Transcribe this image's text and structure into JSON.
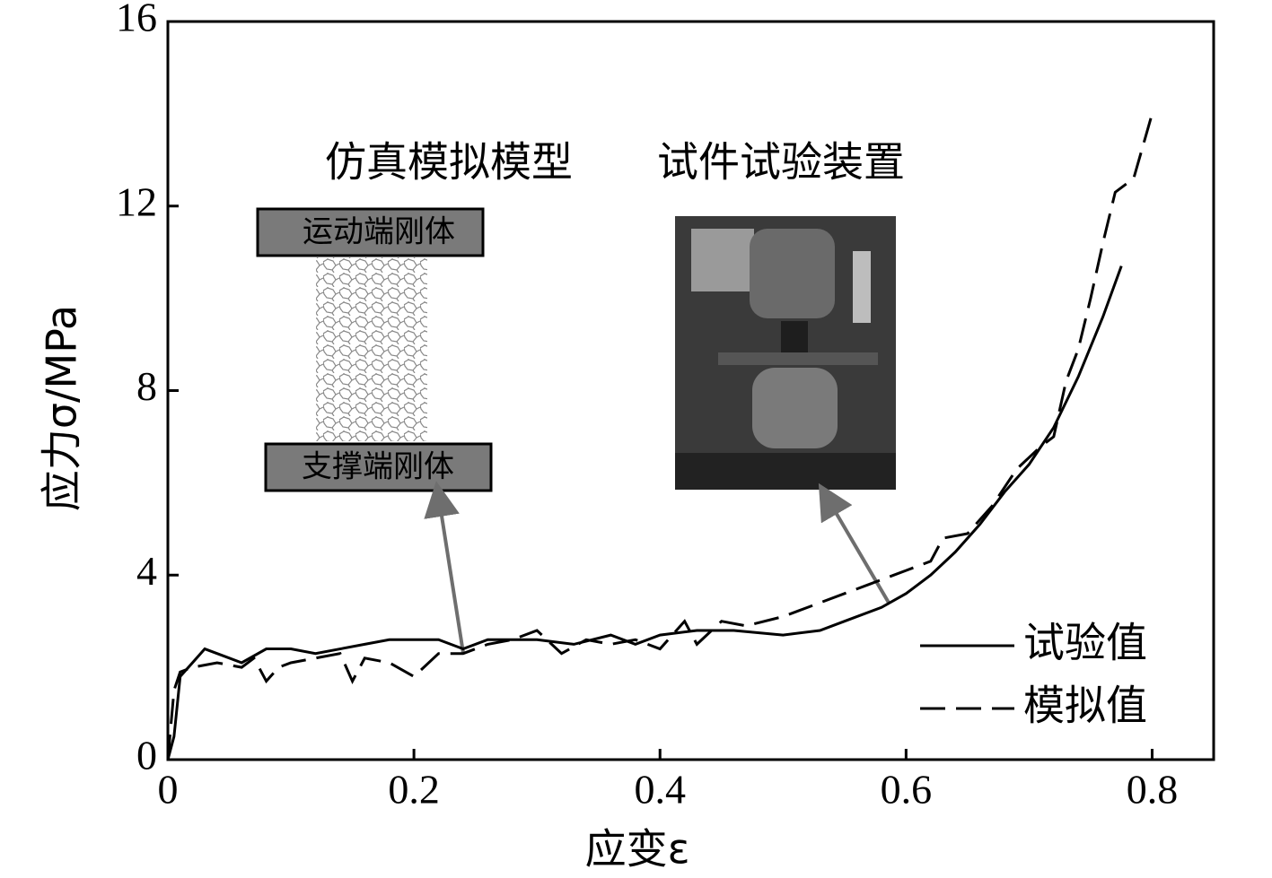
{
  "chart_data": {
    "type": "line",
    "xlabel": "应变ε",
    "ylabel": "应力σ/MPa",
    "annotations": [
      "仿真模拟模型",
      "试件试验装置",
      "运动端刚体",
      "支撑端刚体"
    ],
    "xlim": [
      0,
      0.85
    ],
    "ylim": [
      0,
      16
    ],
    "xticks": [
      0,
      0.2,
      0.4,
      0.6,
      0.8
    ],
    "yticks": [
      0,
      4,
      8,
      12,
      16
    ],
    "legend": "lower right",
    "series": [
      {
        "name": "试验值",
        "color": "#000000",
        "line_style": "solid",
        "x": [
          0,
          0.005,
          0.01,
          0.02,
          0.03,
          0.04,
          0.06,
          0.08,
          0.1,
          0.12,
          0.14,
          0.16,
          0.18,
          0.2,
          0.22,
          0.24,
          0.26,
          0.28,
          0.3,
          0.33,
          0.36,
          0.38,
          0.4,
          0.43,
          0.46,
          0.5,
          0.53,
          0.55,
          0.58,
          0.6,
          0.62,
          0.64,
          0.66,
          0.68,
          0.7,
          0.72,
          0.74,
          0.76,
          0.775
        ],
        "values": [
          0,
          0.5,
          1.8,
          2.1,
          2.4,
          2.3,
          2.1,
          2.4,
          2.4,
          2.3,
          2.4,
          2.5,
          2.6,
          2.6,
          2.6,
          2.4,
          2.6,
          2.6,
          2.6,
          2.5,
          2.7,
          2.5,
          2.7,
          2.8,
          2.8,
          2.7,
          2.8,
          3.0,
          3.3,
          3.6,
          4.0,
          4.5,
          5.1,
          5.8,
          6.4,
          7.2,
          8.3,
          9.6,
          10.7
        ]
      },
      {
        "name": "模拟值",
        "color": "#000000",
        "line_style": "dashed",
        "x": [
          0,
          0.005,
          0.01,
          0.02,
          0.04,
          0.06,
          0.07,
          0.08,
          0.09,
          0.1,
          0.12,
          0.14,
          0.15,
          0.16,
          0.18,
          0.2,
          0.22,
          0.24,
          0.26,
          0.28,
          0.3,
          0.32,
          0.34,
          0.36,
          0.38,
          0.4,
          0.42,
          0.43,
          0.45,
          0.47,
          0.5,
          0.52,
          0.55,
          0.57,
          0.6,
          0.62,
          0.63,
          0.65,
          0.67,
          0.69,
          0.71,
          0.72,
          0.73,
          0.74,
          0.75,
          0.76,
          0.77,
          0.785,
          0.8
        ],
        "values": [
          0,
          1.5,
          1.9,
          2.0,
          2.1,
          2.0,
          2.2,
          1.7,
          2.0,
          2.1,
          2.2,
          2.3,
          1.7,
          2.2,
          2.1,
          1.8,
          2.3,
          2.3,
          2.5,
          2.6,
          2.8,
          2.3,
          2.6,
          2.5,
          2.6,
          2.4,
          3.0,
          2.5,
          3.0,
          2.9,
          3.1,
          3.3,
          3.6,
          3.8,
          4.1,
          4.3,
          4.8,
          4.9,
          5.5,
          6.3,
          6.8,
          7.0,
          8.2,
          8.9,
          10.0,
          11.2,
          12.3,
          12.6,
          14.0
        ]
      }
    ]
  }
}
